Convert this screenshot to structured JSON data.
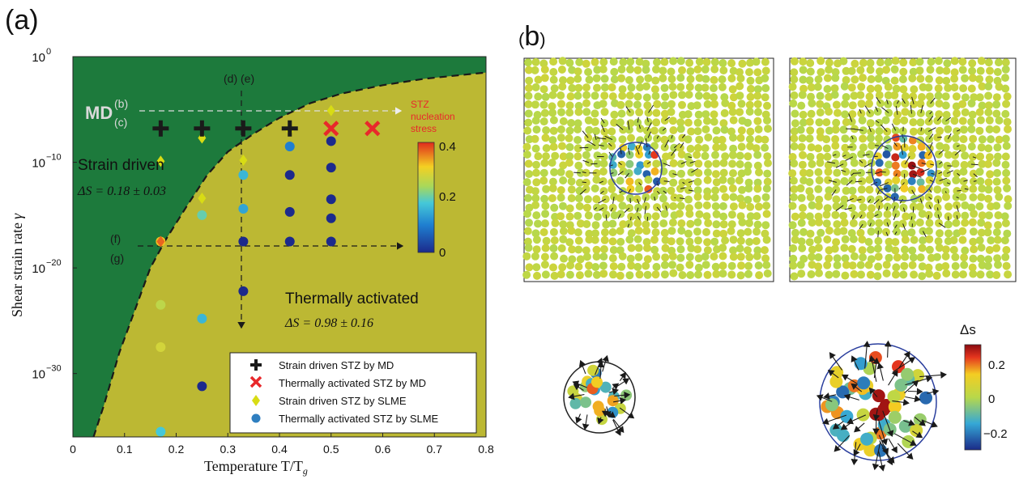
{
  "panel_a": {
    "label": "a",
    "xlabel": "Temperature T/T",
    "xlabel_sub": "g",
    "ylabel": "Shear strain rate",
    "ylabel_symbol": "γ",
    "xticks": [
      "0",
      "0.1",
      "0.2",
      "0.3",
      "0.4",
      "0.5",
      "0.6",
      "0.7",
      "0.8"
    ],
    "yticks": [
      {
        "base": "10",
        "exp": "0",
        "value": 0
      },
      {
        "base": "10",
        "exp": "−10",
        "value": -10
      },
      {
        "base": "10",
        "exp": "−20",
        "value": -20
      },
      {
        "base": "10",
        "exp": "−30",
        "value": -30
      }
    ],
    "region_strain_driven": {
      "title": "Strain driven",
      "delta_s": "ΔS = 0.18 ± 0.03"
    },
    "region_thermal": {
      "title": "Thermally activated",
      "delta_s": "ΔS = 0.98 ± 0.16"
    },
    "md_label": {
      "main": "MD",
      "sup": "(b)",
      "sub": "(c)"
    },
    "de_label": "(d) (e)",
    "f_label": "(f)",
    "g_label": "(g)",
    "colorbar_title_lines": [
      "STZ",
      "nucleation",
      "stress"
    ],
    "colorbar_ticks": [
      "0.4",
      "0.2",
      "0"
    ],
    "colors": {
      "strain_driven_region": "#1d7a3c",
      "thermal_region": "#bcb833",
      "md_strain_cross": "#1a1a1a",
      "md_thermal_x": "#e8282b",
      "annotation_red": "#e8282b"
    },
    "legend": [
      {
        "label": "Strain driven STZ by MD",
        "marker": "plus",
        "color": "#1a1a1a"
      },
      {
        "label": "Thermally activated STZ by MD",
        "marker": "x",
        "color": "#e8282b"
      },
      {
        "label": "Strain driven STZ by SLME",
        "marker": "diamond",
        "color": "#d8dc14"
      },
      {
        "label": "Thermally activated STZ by SLME",
        "marker": "circle",
        "color": "#2f7fc0"
      }
    ]
  },
  "panel_b": {
    "label": "b",
    "colorbar_title": "Δs",
    "colorbar_ticks": [
      "0.2",
      "0",
      "−0.2"
    ]
  },
  "chart_data": {
    "type": "scatter",
    "xlabel": "Temperature T/T_g",
    "ylabel": "Shear strain rate γ",
    "xlim": [
      0,
      0.8
    ],
    "ylim_log10": [
      -36,
      0
    ],
    "y_scale": "log",
    "grid": false,
    "legend_position": "bottom-right",
    "boundary_x_log10": [
      [
        0.04,
        -36
      ],
      [
        0.06,
        -33
      ],
      [
        0.09,
        -28
      ],
      [
        0.12,
        -24
      ],
      [
        0.15,
        -20
      ],
      [
        0.18,
        -17.3
      ],
      [
        0.22,
        -14.2
      ],
      [
        0.26,
        -11.2
      ],
      [
        0.3,
        -9.0
      ],
      [
        0.35,
        -7.3
      ],
      [
        0.4,
        -5.8
      ],
      [
        0.46,
        -4.4
      ],
      [
        0.52,
        -3.5
      ],
      [
        0.6,
        -2.7
      ],
      [
        0.68,
        -2.1
      ],
      [
        0.76,
        -1.7
      ],
      [
        0.8,
        -1.5
      ]
    ],
    "series": [
      {
        "name": "Strain driven STZ by MD",
        "marker": "plus",
        "points": [
          [
            0.17,
            -6.8
          ],
          [
            0.25,
            -6.8
          ],
          [
            0.33,
            -6.8
          ],
          [
            0.42,
            -6.8
          ]
        ]
      },
      {
        "name": "Thermally activated STZ by MD",
        "marker": "x",
        "points": [
          [
            0.5,
            -6.8
          ],
          [
            0.58,
            -6.8
          ]
        ]
      },
      {
        "name": "Strain driven STZ by SLME",
        "marker": "diamond",
        "points": [
          [
            0.17,
            -9.9
          ],
          [
            0.25,
            -7.7
          ],
          [
            0.25,
            -13.4
          ],
          [
            0.33,
            -9.8
          ],
          [
            0.42,
            -7.0
          ],
          [
            0.5,
            -5.1
          ]
        ]
      },
      {
        "name": "Thermally activated STZ by SLME",
        "marker": "circle",
        "points": [
          [
            0.17,
            -17.5,
            0.32
          ],
          [
            0.17,
            -23.5,
            0.26
          ],
          [
            0.17,
            -27.5,
            0.28
          ],
          [
            0.17,
            -35.5,
            0.18
          ],
          [
            0.25,
            -15.0,
            0.2
          ],
          [
            0.25,
            -24.8,
            0.16
          ],
          [
            0.25,
            -31.2,
            0.0
          ],
          [
            0.33,
            -11.2,
            0.16
          ],
          [
            0.33,
            -14.4,
            0.14
          ],
          [
            0.33,
            -17.5,
            0.0
          ],
          [
            0.33,
            -22.2,
            0.0
          ],
          [
            0.42,
            -8.5,
            0.1
          ],
          [
            0.42,
            -11.2,
            0.0
          ],
          [
            0.42,
            -14.7,
            0.0
          ],
          [
            0.42,
            -17.5,
            0.0
          ],
          [
            0.5,
            -8.0,
            0.0
          ],
          [
            0.5,
            -10.5,
            0.0
          ],
          [
            0.5,
            -13.5,
            0.0
          ],
          [
            0.5,
            -15.3,
            0.0
          ],
          [
            0.5,
            -17.5,
            0.0
          ]
        ],
        "value_key": "STZ nucleation stress"
      }
    ],
    "colorbar": {
      "label": "STZ nucleation stress",
      "range": [
        0,
        0.4
      ]
    }
  }
}
